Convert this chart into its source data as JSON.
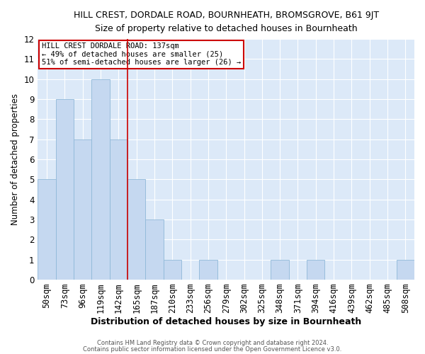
{
  "title": "HILL CREST, DORDALE ROAD, BOURNHEATH, BROMSGROVE, B61 9JT",
  "subtitle": "Size of property relative to detached houses in Bournheath",
  "xlabel": "Distribution of detached houses by size in Bournheath",
  "ylabel": "Number of detached properties",
  "bar_labels": [
    "50sqm",
    "73sqm",
    "96sqm",
    "119sqm",
    "142sqm",
    "165sqm",
    "187sqm",
    "210sqm",
    "233sqm",
    "256sqm",
    "279sqm",
    "302sqm",
    "325sqm",
    "348sqm",
    "371sqm",
    "394sqm",
    "416sqm",
    "439sqm",
    "462sqm",
    "485sqm",
    "508sqm"
  ],
  "bar_values": [
    5,
    9,
    7,
    10,
    7,
    5,
    3,
    1,
    0,
    1,
    0,
    0,
    0,
    1,
    0,
    1,
    0,
    0,
    0,
    0,
    1
  ],
  "bar_color": "#c5d8f0",
  "bar_edge_color": "#8fb8d8",
  "bar_edge_width": 0.6,
  "vline_x_index": 4,
  "vline_color": "#cc0000",
  "ylim": [
    0,
    12
  ],
  "yticks": [
    0,
    1,
    2,
    3,
    4,
    5,
    6,
    7,
    8,
    9,
    10,
    11,
    12
  ],
  "annotation_title": "HILL CREST DORDALE ROAD: 137sqm",
  "annotation_line1": "← 49% of detached houses are smaller (25)",
  "annotation_line2": "51% of semi-detached houses are larger (26) →",
  "annotation_box_color": "#ffffff",
  "annotation_border_color": "#cc0000",
  "plot_bg_color": "#dce9f8",
  "fig_bg_color": "#ffffff",
  "grid_color": "#ffffff",
  "footnote1": "Contains HM Land Registry data © Crown copyright and database right 2024.",
  "footnote2": "Contains public sector information licensed under the Open Government Licence v3.0."
}
